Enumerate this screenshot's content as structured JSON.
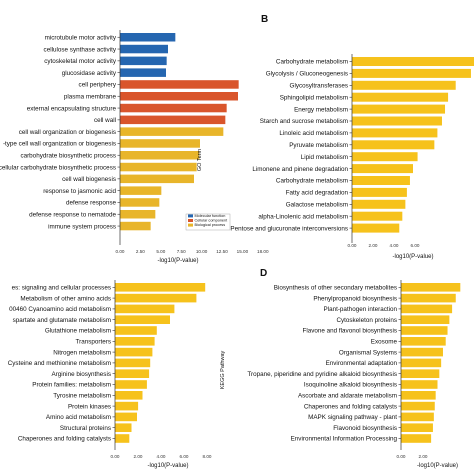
{
  "chart_data": [
    {
      "panel": "",
      "type": "bar",
      "orientation": "horizontal",
      "side_label": "GO Term",
      "xlabel": "-log10(P-value)",
      "xlim": [
        0,
        18
      ],
      "xticks": [
        "0.00",
        "2.50",
        "5.00",
        "7.50",
        "10.00",
        "12.50",
        "15.00",
        "18.00"
      ],
      "legend": {
        "position": "bottom-right",
        "entries": [
          "Molecular function",
          "Cellular component",
          "Biological process"
        ]
      },
      "colors": {
        "Molecular function": "#2566b0",
        "Cellular component": "#d9552b",
        "Biological process": "#e8b52a"
      },
      "categories": [
        "microtubule motor activity",
        "cellulose synthase activity",
        "cytoskeletal motor activity",
        "glucosidase activity",
        "cell periphery",
        "plasma membrane",
        "external encapsulating structure",
        "cell wall",
        "cell wall organization or biogenesis",
        "-type cell wall organization or biogenesis",
        "carbohydrate biosynthetic process",
        "cellular carbohydrate biosynthetic process",
        "cell wall biogenesis",
        "response to jasmonic acid",
        "defense response",
        "defense response to nematode",
        "immune system process"
      ],
      "groups": [
        "Molecular function",
        "Molecular function",
        "Molecular function",
        "Molecular function",
        "Cellular component",
        "Cellular component",
        "Cellular component",
        "Cellular component",
        "Biological process",
        "Biological process",
        "Biological process",
        "Biological process",
        "Biological process",
        "Biological process",
        "Biological process",
        "Biological process",
        "Biological process"
      ],
      "values": [
        8.3,
        7.2,
        7.0,
        6.9,
        17.8,
        17.7,
        16.0,
        15.8,
        15.5,
        12.0,
        11.9,
        11.5,
        11.1,
        6.2,
        5.9,
        5.3,
        4.6
      ]
    },
    {
      "panel": "B",
      "type": "bar",
      "orientation": "horizontal",
      "xlabel": "-log10(P-value)",
      "xlim": [
        0,
        8
      ],
      "xticks": [
        "0.00",
        "2.00",
        "4.00",
        "6.00"
      ],
      "color": "#f6c21c",
      "categories": [
        "Carbohydrate metabolism",
        "Glycolysis / Gluconeogenesis",
        "Glycosyltransferases",
        "Sphingolipid metabolism",
        "Energy metabolism",
        "Starch and sucrose metabolism",
        "Linoleic acid metabolism",
        "Pyruvate metabolism",
        "Lipid metabolism",
        "Limonene and pinene degradation",
        "Carbohydrate metabolism",
        "Fatty acid degradation",
        "Galactose metabolism",
        "alpha-Linolenic acid metabolism",
        "Pentose and glucuronate interconversions"
      ],
      "values": [
        8.0,
        7.8,
        6.8,
        6.3,
        6.1,
        5.9,
        5.6,
        5.4,
        4.3,
        4.0,
        3.8,
        3.6,
        3.5,
        3.3,
        3.1
      ]
    },
    {
      "panel": "",
      "type": "bar",
      "orientation": "horizontal",
      "side_label": "KEGG Pathway",
      "xlabel": "-log10(P-value)",
      "xlim": [
        0,
        10
      ],
      "xticks": [
        "0.00",
        "2.00",
        "4.00",
        "6.00",
        "8.00"
      ],
      "color": "#f6c21c",
      "categories": [
        "es: signaling and cellular processes",
        "Metabolism of other amino acids",
        "00460 Cyanoamino acid metabolism",
        "spartate and glutamate metabolism",
        "Glutathione metabolism",
        "Transporters",
        "Nitrogen metabolism",
        "Cysteine and methionine metabolism",
        "Arginine biosynthesis",
        "Protein families: metabolism",
        "Tyrosine metabolism",
        "Protein kinases",
        "Amino acid metabolism",
        "Structural proteins",
        "Chaperones and folding catalysts"
      ],
      "values": [
        8.2,
        7.4,
        5.4,
        5.0,
        3.8,
        3.6,
        3.4,
        3.2,
        3.1,
        2.9,
        2.5,
        2.1,
        2.0,
        1.5,
        1.3
      ]
    },
    {
      "panel": "D",
      "type": "bar",
      "orientation": "horizontal",
      "xlabel": "-log10(P-value)",
      "xlim": [
        0,
        8
      ],
      "xticks": [
        "0.00",
        "2.00"
      ],
      "color": "#f6c21c",
      "categories": [
        "Biosynthesis of other secondary metabolites",
        "Phenylpropanoid biosynthesis",
        "Plant-pathogen interaction",
        "Cytoskeleton proteins",
        "Flavone and flavonol biosynthesis",
        "Exosome",
        "Organismal Systems",
        "Environmental adaptation",
        "Tropane, piperidine and pyridine alkaloid biosynthesis",
        "Isoquinoline alkaloid biosynthesis",
        "Ascorbate and aldarate metabolism",
        "Chaperones and folding catalysts",
        "MAPK signaling pathway - plant",
        "Flavonoid biosynthesis",
        "Environmental Information Processing"
      ],
      "values": [
        6.5,
        6.0,
        5.6,
        5.3,
        5.1,
        4.9,
        4.6,
        4.4,
        4.2,
        4.0,
        3.8,
        3.7,
        3.6,
        3.5,
        3.3
      ]
    }
  ]
}
